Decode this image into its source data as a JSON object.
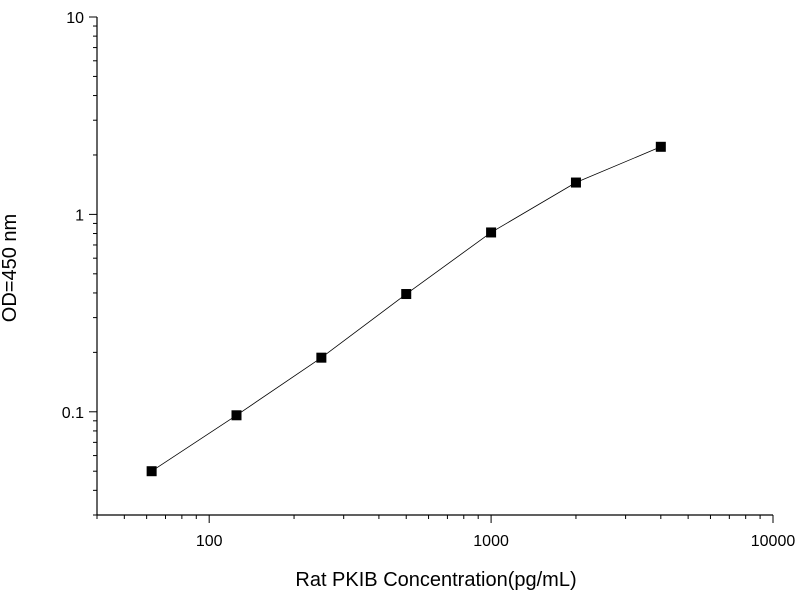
{
  "chart_data": {
    "type": "scatter",
    "title": "",
    "xlabel": "Rat PKIB Concentration(pg/mL)",
    "ylabel": "OD=450 nm",
    "x_scale": "log",
    "y_scale": "log",
    "xlim": [
      40,
      10000
    ],
    "ylim": [
      0.03,
      10
    ],
    "x_ticks": [
      {
        "value": 100,
        "label": "100"
      },
      {
        "value": 1000,
        "label": "1000"
      },
      {
        "value": 10000,
        "label": "10000"
      }
    ],
    "y_ticks": [
      {
        "value": 0.1,
        "label": "0.1"
      },
      {
        "value": 1,
        "label": "1"
      },
      {
        "value": 10,
        "label": "10"
      }
    ],
    "grid": false,
    "legend": "none",
    "marker": "square",
    "line": true,
    "color": "#000000",
    "series": [
      {
        "x": [
          62.5,
          125,
          250,
          500,
          1000,
          2000,
          4000
        ],
        "y": [
          0.05,
          0.096,
          0.188,
          0.395,
          0.81,
          1.45,
          2.2
        ]
      }
    ]
  }
}
